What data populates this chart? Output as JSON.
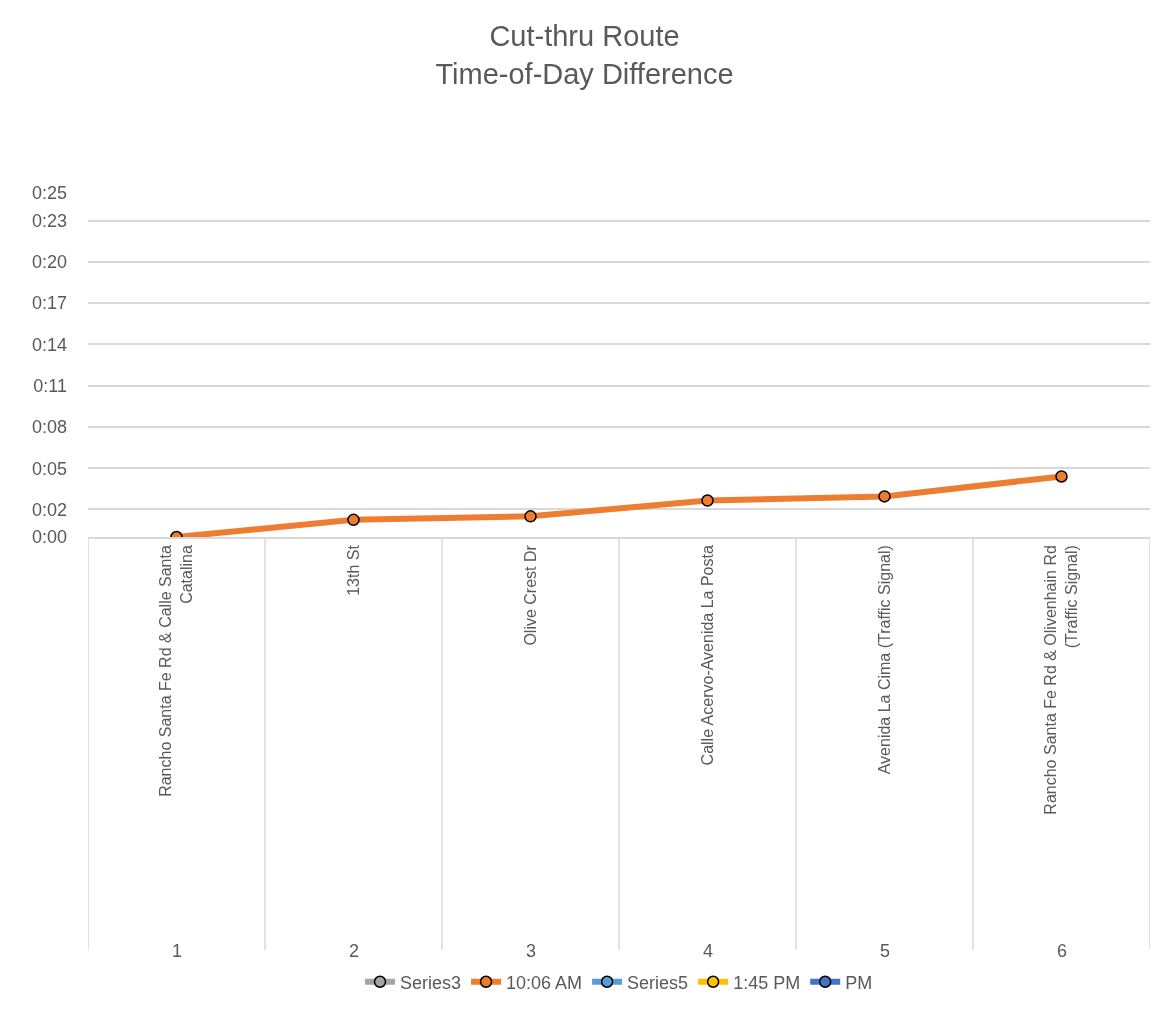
{
  "chart_data": {
    "type": "line",
    "title": "Cut-thru Route\nTime-of-Day Difference",
    "categories": [
      "Rancho Santa Fe Rd & Calle Santa Catalina",
      "13th St",
      "Olive Crest Dr",
      "Calle Acervo-Avenida La Posta",
      "Avenida La Cima (Traffic Signal)",
      "Rancho Santa Fe Rd & Olivenhain Rd (Traffic Signal)"
    ],
    "annotations": [
      "1",
      "2",
      "3",
      "4",
      "5",
      "6"
    ],
    "series": [
      {
        "name": "Series3",
        "color": "#a5a5a5",
        "values": [
          null,
          null,
          null,
          null,
          null,
          null
        ]
      },
      {
        "name": "10:06 AM",
        "color": "#ed7d31",
        "values": [
          0,
          1.25,
          1.5,
          2.65,
          2.95,
          4.4
        ]
      },
      {
        "name": "Series5",
        "color": "#5b9bd5",
        "values": [
          null,
          null,
          null,
          null,
          null,
          null
        ]
      },
      {
        "name": "1:45 PM",
        "color": "#ffc000",
        "values": [
          null,
          null,
          null,
          null,
          null,
          null
        ]
      },
      {
        "name": "PM",
        "color": "#4472c4",
        "values": [
          null,
          null,
          null,
          null,
          null,
          null
        ]
      }
    ],
    "ylim": [
      0,
      25
    ],
    "yticks": [
      {
        "value": 0,
        "label": "0:00"
      },
      {
        "value": 2,
        "label": "0:02"
      },
      {
        "value": 5,
        "label": "0:05"
      },
      {
        "value": 8,
        "label": "0:08"
      },
      {
        "value": 11,
        "label": "0:11"
      },
      {
        "value": 14,
        "label": "0:14"
      },
      {
        "value": 17,
        "label": "0:17"
      },
      {
        "value": 20,
        "label": "0:20"
      },
      {
        "value": 23,
        "label": "0:23"
      },
      {
        "value": 25,
        "label": "0:25"
      }
    ],
    "grid": true,
    "legend": "bottom",
    "marker": "circle",
    "line_style": "solid"
  }
}
